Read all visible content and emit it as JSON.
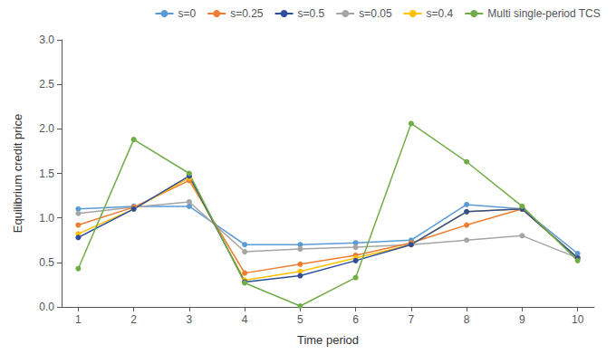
{
  "chart_data": {
    "type": "line",
    "xlabel": "Time period",
    "ylabel": "Equilibrium credit price",
    "x": [
      1,
      2,
      3,
      4,
      5,
      6,
      7,
      8,
      9,
      10
    ],
    "series": [
      {
        "name": "s=0",
        "color": "#5B9BD5",
        "values": [
          1.1,
          1.13,
          1.13,
          0.7,
          0.7,
          0.72,
          0.75,
          1.15,
          1.1,
          0.6
        ]
      },
      {
        "name": "s=0.05",
        "color": "#A5A5A5",
        "values": [
          1.05,
          1.12,
          1.18,
          0.62,
          0.65,
          0.67,
          0.7,
          0.75,
          0.8,
          0.55
        ]
      },
      {
        "name": "s=0.25",
        "color": "#ED7D31",
        "values": [
          0.92,
          1.12,
          1.42,
          0.38,
          0.48,
          0.58,
          0.72,
          0.92,
          1.1,
          0.55
        ]
      },
      {
        "name": "s=0.4",
        "color": "#FFC000",
        "values": [
          0.82,
          1.1,
          1.45,
          0.3,
          0.4,
          0.55,
          0.7,
          1.07,
          1.1,
          0.55
        ]
      },
      {
        "name": "s=0.5",
        "color": "#2E4D9B",
        "values": [
          0.78,
          1.1,
          1.47,
          0.28,
          0.35,
          0.52,
          0.7,
          1.07,
          1.1,
          0.55
        ]
      },
      {
        "name": "Multi single-period TCS",
        "color": "#70AD47",
        "values": [
          0.43,
          1.88,
          1.5,
          0.27,
          0.01,
          0.33,
          2.06,
          1.63,
          1.13,
          0.52
        ]
      }
    ],
    "legend_order": [
      "s=0",
      "s=0.25",
      "s=0.5",
      "s=0.05",
      "s=0.4",
      "Multi single-period TCS"
    ],
    "xlim": [
      0.7,
      10.3
    ],
    "xticks": [
      1,
      2,
      3,
      4,
      5,
      6,
      7,
      8,
      9,
      10
    ],
    "ylim": [
      0,
      3
    ],
    "yticks": [
      {
        "value": 0,
        "label": "0.0"
      },
      {
        "value": 0.5,
        "label": "0.5"
      },
      {
        "value": 1,
        "label": "1.0"
      },
      {
        "value": 1.5,
        "label": "1.5"
      },
      {
        "value": 2,
        "label": "2.0"
      },
      {
        "value": 2.5,
        "label": "2.5"
      },
      {
        "value": 3,
        "label": "3.0"
      }
    ],
    "marker": "circle",
    "grid": false,
    "legend": "upper right"
  }
}
